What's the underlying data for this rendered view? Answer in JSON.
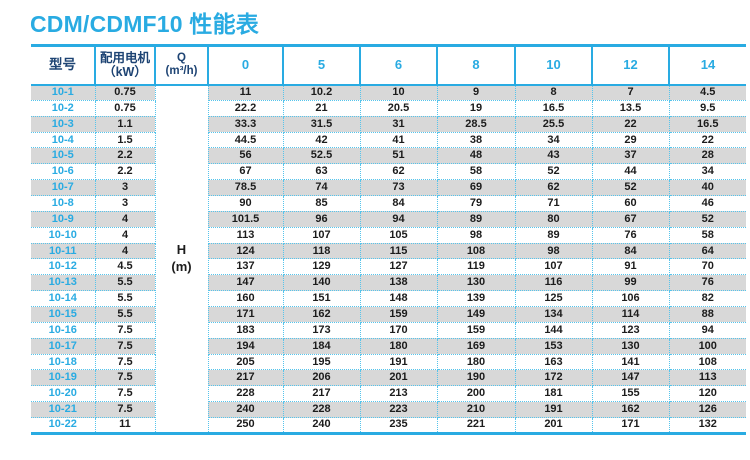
{
  "title": "CDM/CDMF10 性能表",
  "colors": {
    "accent": "#29abe2",
    "header_text": "#1d4373",
    "stripe": "#d8d8d8",
    "dotted_border": "#55c4ec",
    "value_text": "#1c1c1c"
  },
  "table": {
    "headers": {
      "model": "型号",
      "motor_line1": "配用电机",
      "motor_line2": "（kW）",
      "q_line1": "Q",
      "q_line2": "(m³/h)",
      "flow_columns": [
        "0",
        "5",
        "6",
        "8",
        "10",
        "12",
        "14"
      ]
    },
    "merged_cell": {
      "line1": "H",
      "line2": "(m)"
    },
    "rows": [
      {
        "model": "10-1",
        "kw": "0.75",
        "values": [
          "11",
          "10.2",
          "10",
          "9",
          "8",
          "7",
          "4.5"
        ]
      },
      {
        "model": "10-2",
        "kw": "0.75",
        "values": [
          "22.2",
          "21",
          "20.5",
          "19",
          "16.5",
          "13.5",
          "9.5"
        ]
      },
      {
        "model": "10-3",
        "kw": "1.1",
        "values": [
          "33.3",
          "31.5",
          "31",
          "28.5",
          "25.5",
          "22",
          "16.5"
        ]
      },
      {
        "model": "10-4",
        "kw": "1.5",
        "values": [
          "44.5",
          "42",
          "41",
          "38",
          "34",
          "29",
          "22"
        ]
      },
      {
        "model": "10-5",
        "kw": "2.2",
        "values": [
          "56",
          "52.5",
          "51",
          "48",
          "43",
          "37",
          "28"
        ]
      },
      {
        "model": "10-6",
        "kw": "2.2",
        "values": [
          "67",
          "63",
          "62",
          "58",
          "52",
          "44",
          "34"
        ]
      },
      {
        "model": "10-7",
        "kw": "3",
        "values": [
          "78.5",
          "74",
          "73",
          "69",
          "62",
          "52",
          "40"
        ]
      },
      {
        "model": "10-8",
        "kw": "3",
        "values": [
          "90",
          "85",
          "84",
          "79",
          "71",
          "60",
          "46"
        ]
      },
      {
        "model": "10-9",
        "kw": "4",
        "values": [
          "101.5",
          "96",
          "94",
          "89",
          "80",
          "67",
          "52"
        ]
      },
      {
        "model": "10-10",
        "kw": "4",
        "values": [
          "113",
          "107",
          "105",
          "98",
          "89",
          "76",
          "58"
        ]
      },
      {
        "model": "10-11",
        "kw": "4",
        "values": [
          "124",
          "118",
          "115",
          "108",
          "98",
          "84",
          "64"
        ]
      },
      {
        "model": "10-12",
        "kw": "4.5",
        "values": [
          "137",
          "129",
          "127",
          "119",
          "107",
          "91",
          "70"
        ]
      },
      {
        "model": "10-13",
        "kw": "5.5",
        "values": [
          "147",
          "140",
          "138",
          "130",
          "116",
          "99",
          "76"
        ]
      },
      {
        "model": "10-14",
        "kw": "5.5",
        "values": [
          "160",
          "151",
          "148",
          "139",
          "125",
          "106",
          "82"
        ]
      },
      {
        "model": "10-15",
        "kw": "5.5",
        "values": [
          "171",
          "162",
          "159",
          "149",
          "134",
          "114",
          "88"
        ]
      },
      {
        "model": "10-16",
        "kw": "7.5",
        "values": [
          "183",
          "173",
          "170",
          "159",
          "144",
          "123",
          "94"
        ]
      },
      {
        "model": "10-17",
        "kw": "7.5",
        "values": [
          "194",
          "184",
          "180",
          "169",
          "153",
          "130",
          "100"
        ]
      },
      {
        "model": "10-18",
        "kw": "7.5",
        "values": [
          "205",
          "195",
          "191",
          "180",
          "163",
          "141",
          "108"
        ]
      },
      {
        "model": "10-19",
        "kw": "7.5",
        "values": [
          "217",
          "206",
          "201",
          "190",
          "172",
          "147",
          "113"
        ]
      },
      {
        "model": "10-20",
        "kw": "7.5",
        "values": [
          "228",
          "217",
          "213",
          "200",
          "181",
          "155",
          "120"
        ]
      },
      {
        "model": "10-21",
        "kw": "7.5",
        "values": [
          "240",
          "228",
          "223",
          "210",
          "191",
          "162",
          "126"
        ]
      },
      {
        "model": "10-22",
        "kw": "11",
        "values": [
          "250",
          "240",
          "235",
          "221",
          "201",
          "171",
          "132"
        ]
      }
    ]
  }
}
